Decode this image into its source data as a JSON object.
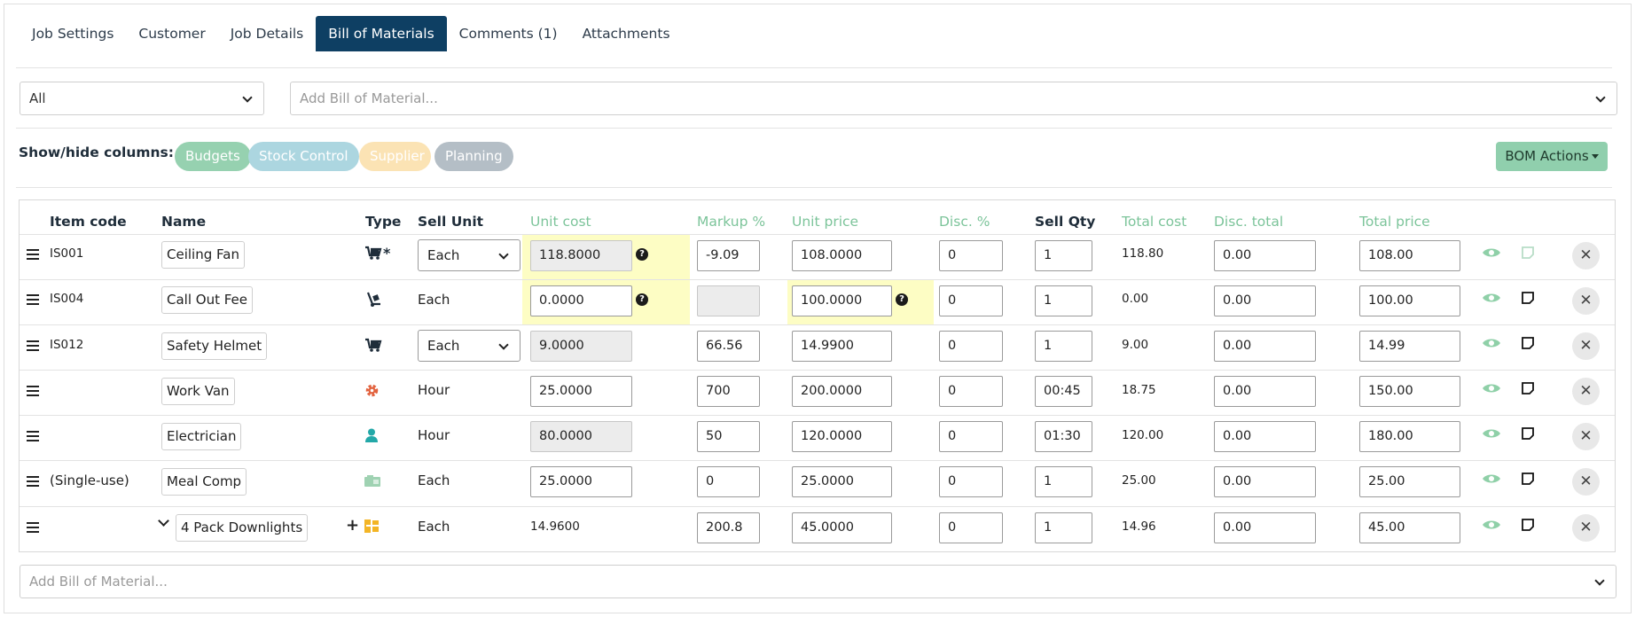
{
  "tabs": [
    "Job Settings",
    "Customer",
    "Job Details",
    "Bill of Materials",
    "Comments (1)",
    "Attachments"
  ],
  "filter": {
    "value": "All"
  },
  "add_bom": {
    "placeholder": "Add Bill of Material..."
  },
  "show_hide": {
    "label": "Show/hide columns:",
    "pills": [
      {
        "label": "Budgets",
        "color": "#96d1b0"
      },
      {
        "label": "Stock Control",
        "color": "#acd6e0"
      },
      {
        "label": "Supplier",
        "color": "#fbe3b4"
      },
      {
        "label": "Planning",
        "color": "#b4bec6"
      }
    ]
  },
  "bom_actions": "BOM Actions",
  "columns": [
    "Item code",
    "Name",
    "Type",
    "Sell Unit",
    "Unit cost",
    "Markup %",
    "Unit price",
    "Disc. %",
    "Sell Qty",
    "Total cost",
    "Disc. total",
    "Total price"
  ],
  "colors": {
    "tab_active": "#0e3f63",
    "green_header": "#7cc49a",
    "highlight": "#fdfdc4"
  },
  "rows": [
    {
      "code": "IS001",
      "name": "Ceiling Fan",
      "type_icon": "stock-cart-icon",
      "unit": "Each",
      "unit_select": true,
      "unit_cost": "118.8000",
      "markup": "-9.09",
      "unit_price": "108.0000",
      "disc": "0",
      "qty": "1",
      "total_cost": "118.80",
      "disc_total": "0.00",
      "total_price": "108.00"
    },
    {
      "code": "IS004",
      "name": "Call Out Fee",
      "type_icon": "hand-truck-icon",
      "unit": "Each",
      "unit_select": false,
      "unit_cost": "0.0000",
      "markup": "",
      "unit_price": "100.0000",
      "disc": "0",
      "qty": "1",
      "total_cost": "0.00",
      "disc_total": "0.00",
      "total_price": "100.00"
    },
    {
      "code": "IS012",
      "name": "Safety Helmet",
      "type_icon": "stock-cart-icon",
      "unit": "Each",
      "unit_select": true,
      "unit_cost": "9.0000",
      "markup": "66.56",
      "unit_price": "14.9900",
      "disc": "0",
      "qty": "1",
      "total_cost": "9.00",
      "disc_total": "0.00",
      "total_price": "14.99"
    },
    {
      "code": "",
      "name": "Work Van",
      "type_icon": "gear-icon",
      "unit": "Hour",
      "unit_select": false,
      "unit_cost": "25.0000",
      "markup": "700",
      "unit_price": "200.0000",
      "disc": "0",
      "qty": "00:45",
      "total_cost": "18.75",
      "disc_total": "0.00",
      "total_price": "150.00"
    },
    {
      "code": "",
      "name": "Electrician",
      "type_icon": "person-icon",
      "unit": "Hour",
      "unit_select": false,
      "unit_cost": "80.0000",
      "markup": "50",
      "unit_price": "120.0000",
      "disc": "0",
      "qty": "01:30",
      "total_cost": "120.00",
      "disc_total": "0.00",
      "total_price": "180.00"
    },
    {
      "code": "(Single-use)",
      "name": "Meal Comp",
      "type_icon": "ticket-icon",
      "unit": "Each",
      "unit_select": false,
      "unit_cost": "25.0000",
      "markup": "0",
      "unit_price": "25.0000",
      "disc": "0",
      "qty": "1",
      "total_cost": "25.00",
      "disc_total": "0.00",
      "total_price": "25.00"
    },
    {
      "code": "",
      "name": "4 Pack Downlights",
      "type_icon": "kit-icon",
      "unit": "Each",
      "unit_select": false,
      "unit_cost": "14.9600",
      "markup": "200.8",
      "unit_price": "45.0000",
      "disc": "0",
      "qty": "1",
      "total_cost": "14.96",
      "disc_total": "0.00",
      "total_price": "45.00"
    }
  ]
}
